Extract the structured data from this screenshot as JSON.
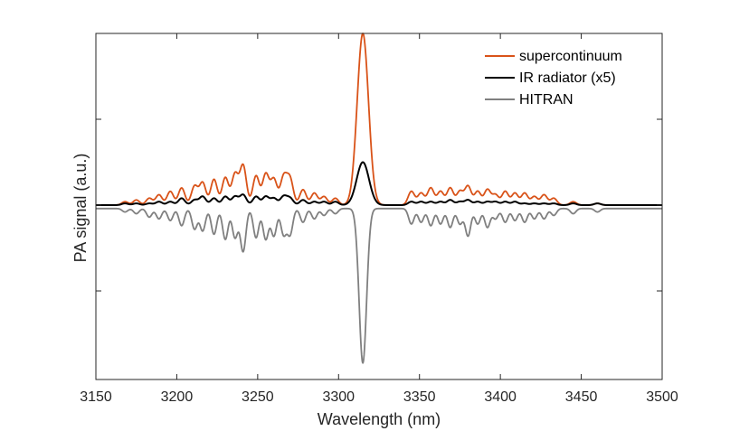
{
  "chart_data": {
    "type": "line",
    "title": "",
    "xlabel": "Wavelength (nm)",
    "ylabel": "PA signal (a.u.)",
    "xlim": [
      3150,
      3500
    ],
    "ylim": [
      -1.0,
      1.0
    ],
    "xticks": [
      3150,
      3200,
      3250,
      3300,
      3350,
      3400,
      3450,
      3500
    ],
    "ytick_values": [
      -0.5,
      0,
      0.5
    ],
    "ytick_labels_visible": false,
    "legend_position": "top-right",
    "colors": {
      "supercontinuum": "#d95319",
      "ir_radiator": "#000000",
      "hitran": "#808080",
      "axis": "#262626"
    },
    "peak_centers": [
      3168,
      3175,
      3183,
      3189,
      3196,
      3203,
      3211,
      3216,
      3223,
      3230,
      3236,
      3241,
      3249,
      3255,
      3260,
      3266,
      3270,
      3278,
      3285,
      3291,
      3298,
      3345,
      3351,
      3357,
      3363,
      3369,
      3375,
      3380,
      3386,
      3392,
      3397,
      3403,
      3409,
      3415,
      3421,
      3427,
      3433,
      3445,
      3460
    ],
    "series": [
      {
        "name": "supercontinuum",
        "color_key": "supercontinuum",
        "base": 0.0,
        "peak_width": 2.0,
        "main_peak": {
          "x": 3315,
          "height": 1.0,
          "width": 3.5
        },
        "side_peak_heights": [
          0.02,
          0.03,
          0.04,
          0.06,
          0.08,
          0.1,
          0.11,
          0.13,
          0.15,
          0.16,
          0.18,
          0.23,
          0.17,
          0.18,
          0.15,
          0.16,
          0.15,
          0.09,
          0.07,
          0.05,
          0.04,
          0.08,
          0.07,
          0.1,
          0.08,
          0.1,
          0.08,
          0.11,
          0.08,
          0.09,
          0.06,
          0.08,
          0.07,
          0.07,
          0.05,
          0.06,
          0.04,
          0.02,
          0.01
        ]
      },
      {
        "name": "IR radiator (x5)",
        "color_key": "ir_radiator",
        "base": 0.0,
        "peak_width": 2.0,
        "main_peak": {
          "x": 3315,
          "height": 0.25,
          "width": 3.8
        },
        "side_peak_heights": [
          0.01,
          0.01,
          0.01,
          0.02,
          0.02,
          0.04,
          0.03,
          0.05,
          0.04,
          0.05,
          0.05,
          0.06,
          0.05,
          0.05,
          0.04,
          0.05,
          0.04,
          0.03,
          0.02,
          0.02,
          0.02,
          0.02,
          0.02,
          0.02,
          0.02,
          0.03,
          0.02,
          0.03,
          0.02,
          0.02,
          0.02,
          0.02,
          0.02,
          0.01,
          0.01,
          0.01,
          0.01,
          0.01,
          0.01
        ]
      },
      {
        "name": "HITRAN",
        "color_key": "hitran",
        "base": -0.02,
        "peak_width": 1.7,
        "main_peak": {
          "x": 3315,
          "height": -0.9,
          "width": 2.3
        },
        "side_peak_heights": [
          -0.02,
          -0.03,
          -0.05,
          -0.06,
          -0.07,
          -0.1,
          -0.12,
          -0.13,
          -0.15,
          -0.18,
          -0.17,
          -0.25,
          -0.17,
          -0.18,
          -0.16,
          -0.15,
          -0.15,
          -0.08,
          -0.06,
          -0.04,
          -0.03,
          -0.09,
          -0.08,
          -0.1,
          -0.09,
          -0.11,
          -0.09,
          -0.16,
          -0.09,
          -0.11,
          -0.06,
          -0.08,
          -0.07,
          -0.08,
          -0.06,
          -0.06,
          -0.04,
          -0.03,
          -0.02
        ]
      }
    ]
  }
}
